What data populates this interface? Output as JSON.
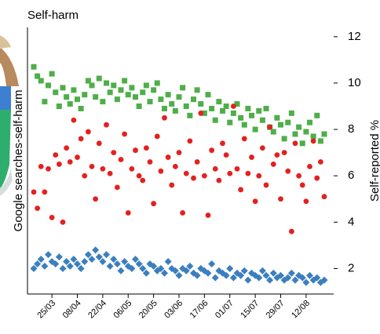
{
  "chart_data": {
    "type": "scatter",
    "title": "Self-harm",
    "ylabel": "Google searches-self-harm",
    "y2label": "Self-reported %",
    "x": [
      "15/03",
      "17/03",
      "19/03",
      "21/03",
      "23/03",
      "25/03",
      "27/03",
      "29/03",
      "31/03",
      "02/04",
      "04/04",
      "06/04",
      "08/04",
      "10/04",
      "12/04",
      "14/04",
      "16/04",
      "18/04",
      "20/04",
      "22/04",
      "24/04",
      "26/04",
      "28/04",
      "30/04",
      "02/05",
      "04/05",
      "06/05",
      "08/05",
      "10/05",
      "12/05",
      "14/05",
      "16/05",
      "18/05",
      "20/05",
      "22/05",
      "24/05",
      "26/05",
      "28/05",
      "30/05",
      "01/06",
      "03/06",
      "05/06",
      "07/06",
      "09/06",
      "11/06",
      "13/06",
      "15/06",
      "17/06",
      "19/06",
      "21/06",
      "23/06",
      "25/06",
      "27/06",
      "29/06",
      "01/07",
      "03/07",
      "05/07",
      "07/07",
      "09/07",
      "11/07",
      "13/07",
      "15/07",
      "17/07",
      "19/07",
      "21/07",
      "23/07",
      "25/07",
      "27/07",
      "29/07",
      "31/07",
      "02/08",
      "04/08",
      "06/08",
      "08/08",
      "10/08",
      "12/08",
      "14/08",
      "16/08",
      "18/08",
      "20/08",
      "22/08"
    ],
    "xticks": [
      "25/03",
      "08/04",
      "22/04",
      "06/05",
      "20/05",
      "03/06",
      "17/06",
      "01/07",
      "15/07",
      "29/07",
      "12/08"
    ],
    "ylim": [
      0.9,
      12.4
    ],
    "yticks": [
      2,
      4,
      6,
      8,
      10,
      12
    ],
    "y_axis_side": "right",
    "series": [
      {
        "marker": "square",
        "color": "#4fae4a",
        "values": [
          10.7,
          10.3,
          10.1,
          9.2,
          9.9,
          10.4,
          9.6,
          9.0,
          9.8,
          9.4,
          9.1,
          9.7,
          9.3,
          8.9,
          9.5,
          10.1,
          9.9,
          9.4,
          10.2,
          9.2,
          10.0,
          9.6,
          9.9,
          9.3,
          9.7,
          10.1,
          9.5,
          9.8,
          9.4,
          9.0,
          9.6,
          9.9,
          9.2,
          9.7,
          10.0,
          9.3,
          8.9,
          9.5,
          9.1,
          8.8,
          9.4,
          9.8,
          9.0,
          8.6,
          9.3,
          9.7,
          9.1,
          8.7,
          9.5,
          8.9,
          8.4,
          9.2,
          8.8,
          9.0,
          8.3,
          8.7,
          9.1,
          8.5,
          8.2,
          8.9,
          8.6,
          8.0,
          8.8,
          8.4,
          8.9,
          8.1,
          7.9,
          8.5,
          8.2,
          7.6,
          8.3,
          8.7,
          7.8,
          8.1,
          7.4,
          7.9,
          8.3,
          7.7,
          8.6,
          7.5,
          7.8
        ]
      },
      {
        "marker": "circle",
        "color": "#e3211f",
        "values": [
          5.3,
          4.6,
          6.4,
          5.3,
          6.3,
          4.2,
          6.9,
          6.5,
          4.0,
          7.2,
          6.6,
          8.4,
          6.8,
          7.6,
          6.0,
          7.9,
          6.4,
          5.0,
          7.4,
          6.3,
          8.2,
          6.1,
          7.0,
          5.5,
          6.7,
          7.8,
          4.4,
          6.3,
          7.1,
          6.0,
          5.8,
          7.2,
          6.6,
          4.8,
          7.7,
          6.2,
          8.5,
          6.8,
          5.6,
          6.4,
          7.0,
          4.4,
          6.1,
          7.5,
          5.9,
          6.6,
          8.7,
          6.0,
          4.3,
          7.1,
          6.3,
          5.8,
          7.4,
          6.9,
          6.1,
          9.0,
          6.3,
          5.4,
          7.6,
          6.1,
          6.8,
          4.9,
          6.0,
          7.2,
          5.6,
          8.1,
          6.5,
          6.9,
          5.0,
          7.0,
          6.2,
          3.6,
          7.4,
          6.0,
          5.6,
          4.9,
          6.4,
          7.5,
          5.9,
          6.6,
          5.1
        ]
      },
      {
        "marker": "diamond",
        "color": "#3b7fbf",
        "values": [
          2.0,
          2.2,
          2.4,
          2.1,
          2.6,
          2.3,
          2.2,
          2.5,
          2.0,
          2.3,
          2.1,
          2.4,
          2.2,
          2.0,
          2.3,
          2.6,
          2.4,
          2.8,
          2.5,
          2.3,
          2.6,
          2.1,
          2.4,
          2.2,
          1.9,
          2.3,
          2.1,
          2.0,
          2.4,
          2.2,
          2.0,
          1.8,
          2.2,
          2.1,
          1.9,
          2.0,
          1.8,
          2.3,
          2.0,
          1.9,
          1.7,
          2.0,
          1.9,
          2.1,
          1.8,
          1.7,
          2.0,
          1.9,
          1.8,
          2.2,
          1.6,
          1.9,
          1.8,
          1.7,
          2.0,
          1.6,
          1.8,
          1.7,
          1.9,
          1.5,
          1.8,
          1.7,
          1.6,
          1.9,
          1.7,
          1.5,
          1.8,
          1.6,
          1.7,
          1.5,
          1.6,
          1.8,
          1.5,
          1.7,
          1.6,
          1.4,
          1.7,
          1.5,
          1.6,
          1.4,
          1.5
        ]
      }
    ]
  }
}
